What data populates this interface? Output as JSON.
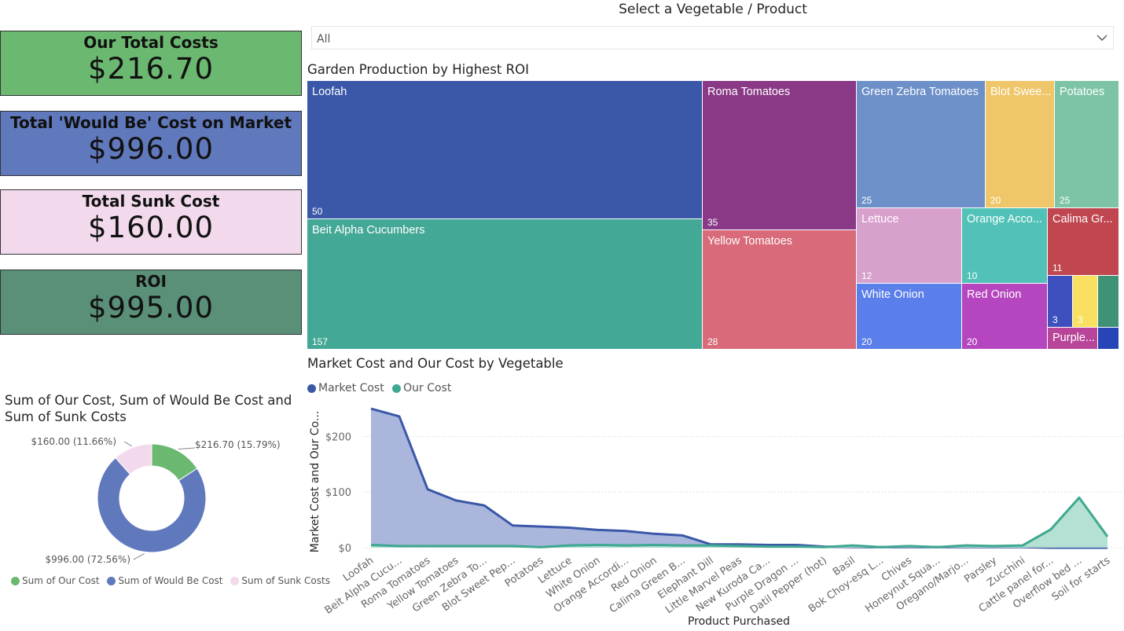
{
  "kpis": [
    {
      "title": "Our Total Costs",
      "value": "$216.70",
      "bg": "#6BB870"
    },
    {
      "title": "Total 'Would Be' Cost on Market",
      "value": "$996.00",
      "bg": "#6079BD"
    },
    {
      "title": "Total Sunk Cost",
      "value": "$160.00",
      "bg": "#F2DAEC"
    },
    {
      "title": "ROI",
      "value": "$995.00",
      "bg": "#5A8F78"
    }
  ],
  "slicer": {
    "title": "Select a Vegetable / Product",
    "value": "All"
  },
  "treemap": {
    "title": "Garden Production by Highest ROI",
    "tiles": [
      {
        "name": "Loofah",
        "value": "50",
        "color": "#3A57A8"
      },
      {
        "name": "Beit Alpha Cucumbers",
        "value": "157",
        "color": "#44A896"
      },
      {
        "name": "Roma Tomatoes",
        "value": "35",
        "color": "#893985"
      },
      {
        "name": "Yellow Tomatoes",
        "value": "28",
        "color": "#D86A79"
      },
      {
        "name": "Green Zebra Tomatoes",
        "value": "25",
        "color": "#6D90C8"
      },
      {
        "name": "Blot Swee...",
        "value": "20",
        "color": "#F0C66A"
      },
      {
        "name": "Potatoes",
        "value": "25",
        "color": "#7DC4A6"
      },
      {
        "name": "Lettuce",
        "value": "12",
        "color": "#D8A0CC"
      },
      {
        "name": "Orange Acco...",
        "value": "10",
        "color": "#52C2B8"
      },
      {
        "name": "Calima Gr...",
        "value": "11",
        "color": "#C04650"
      },
      {
        "name": "White Onion",
        "value": "20",
        "color": "#5A7EEA"
      },
      {
        "name": "Red Onion",
        "value": "20",
        "color": "#B646C0"
      },
      {
        "name": "",
        "value": "3",
        "color": "#3E4FBE"
      },
      {
        "name": "",
        "value": "3",
        "color": "#FAE060"
      },
      {
        "name": "",
        "value": "",
        "color": "#3E9275"
      },
      {
        "name": "Purple...",
        "value": "",
        "color": "#B8459A"
      },
      {
        "name": "",
        "value": "",
        "color": "#2845B8"
      }
    ]
  },
  "chart_data": [
    {
      "type": "area",
      "title": "Market Cost and Our Cost by Vegetable",
      "xlabel": "Product Purchased",
      "ylabel": "Market Cost and Our Co...",
      "ylim": [
        0,
        260
      ],
      "yticks": [
        "$0",
        "$100",
        "$200"
      ],
      "grid": true,
      "legend_position": "top-left",
      "categories": [
        "Loofah",
        "Beit Alpha Cucu...",
        "Roma Tomatoes",
        "Yellow Tomatoes",
        "Green Zebra To...",
        "Blot Sweet Pep...",
        "Potatoes",
        "Lettuce",
        "White Onion",
        "Orange Accordi...",
        "Red Onion",
        "Calima Green B...",
        "Elephant Dill",
        "Little Marvel Peas",
        "New Kuroda Ca...",
        "Purple Dragon ...",
        "Datil Pepper (hot)",
        "Basil",
        "Bok Choy-esq L...",
        "Chives",
        "Honeynut Squa...",
        "Oregano/Marjo...",
        "Parsley",
        "Zucchini",
        "Cattle panel for...",
        "Overflow bed ...",
        "Soil for starts"
      ],
      "series": [
        {
          "name": "Market Cost",
          "color": "#3A57A8",
          "fill": "#AAB6DC",
          "values": [
            250,
            236,
            105,
            85,
            76,
            40,
            38,
            36,
            32,
            30,
            25,
            22,
            6,
            6,
            5,
            5,
            2,
            1,
            1,
            1,
            1,
            1,
            1,
            1,
            0,
            0,
            0
          ]
        },
        {
          "name": "Our Cost",
          "color": "#3FA890",
          "fill": "#B0DFD2",
          "values": [
            5,
            3,
            3,
            3,
            3,
            3,
            1,
            4,
            5,
            4,
            5,
            4,
            4,
            3,
            2,
            2,
            1,
            4,
            1,
            3,
            1,
            4,
            3,
            4,
            33,
            90,
            20
          ]
        }
      ]
    },
    {
      "type": "pie",
      "title": "Sum of Our Cost, Sum of Would Be Cost and Sum of Sunk Costs",
      "categories": [
        "Sum of Our Cost",
        "Sum of Would Be Cost",
        "Sum of Sunk Costs"
      ],
      "values": [
        216.7,
        996,
        160
      ],
      "labels": [
        "$216.70 (15.79%)",
        "$996.00 (72.56%)",
        "$160.00 (11.66%)"
      ],
      "colors": [
        "#6BB870",
        "#6079BD",
        "#F2DAEC"
      ],
      "legend_position": "bottom"
    }
  ]
}
